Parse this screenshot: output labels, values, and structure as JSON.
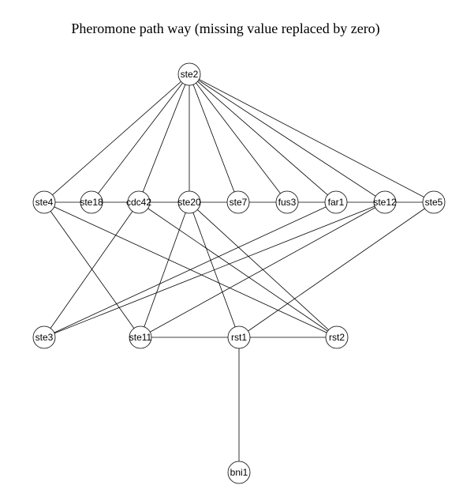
{
  "title": "Pheromone path way (missing value replaced by zero)",
  "nodes": [
    {
      "id": "ste2",
      "label": "ste2"
    },
    {
      "id": "ste4",
      "label": "ste4"
    },
    {
      "id": "ste18",
      "label": "ste18"
    },
    {
      "id": "cdc42",
      "label": "cdc42"
    },
    {
      "id": "ste20",
      "label": "ste20"
    },
    {
      "id": "ste7",
      "label": "ste7"
    },
    {
      "id": "fus3",
      "label": "fus3"
    },
    {
      "id": "far1",
      "label": "far1"
    },
    {
      "id": "ste12",
      "label": "ste12"
    },
    {
      "id": "ste5",
      "label": "ste5"
    },
    {
      "id": "ste3",
      "label": "ste3"
    },
    {
      "id": "ste11",
      "label": "ste11"
    },
    {
      "id": "rst1",
      "label": "rst1"
    },
    {
      "id": "rst2",
      "label": "rst2"
    },
    {
      "id": "bni1",
      "label": "bni1"
    }
  ],
  "edges": [
    [
      "ste2",
      "ste4"
    ],
    [
      "ste2",
      "ste18"
    ],
    [
      "ste2",
      "cdc42"
    ],
    [
      "ste2",
      "ste20"
    ],
    [
      "ste2",
      "ste7"
    ],
    [
      "ste2",
      "fus3"
    ],
    [
      "ste2",
      "far1"
    ],
    [
      "ste2",
      "ste12"
    ],
    [
      "ste2",
      "ste5"
    ],
    [
      "ste4",
      "ste18"
    ],
    [
      "ste18",
      "cdc42"
    ],
    [
      "cdc42",
      "ste20"
    ],
    [
      "ste20",
      "ste7"
    ],
    [
      "ste7",
      "fus3"
    ],
    [
      "fus3",
      "far1"
    ],
    [
      "far1",
      "ste12"
    ],
    [
      "ste12",
      "ste5"
    ],
    [
      "ste4",
      "ste11"
    ],
    [
      "ste4",
      "rst2"
    ],
    [
      "cdc42",
      "ste3"
    ],
    [
      "cdc42",
      "rst2"
    ],
    [
      "ste20",
      "ste11"
    ],
    [
      "ste20",
      "rst1"
    ],
    [
      "ste20",
      "rst2"
    ],
    [
      "far1",
      "ste3"
    ],
    [
      "ste12",
      "ste3"
    ],
    [
      "ste12",
      "ste11"
    ],
    [
      "ste5",
      "rst1"
    ],
    [
      "ste11",
      "rst1"
    ],
    [
      "rst1",
      "rst2"
    ],
    [
      "rst1",
      "bni1"
    ]
  ]
}
